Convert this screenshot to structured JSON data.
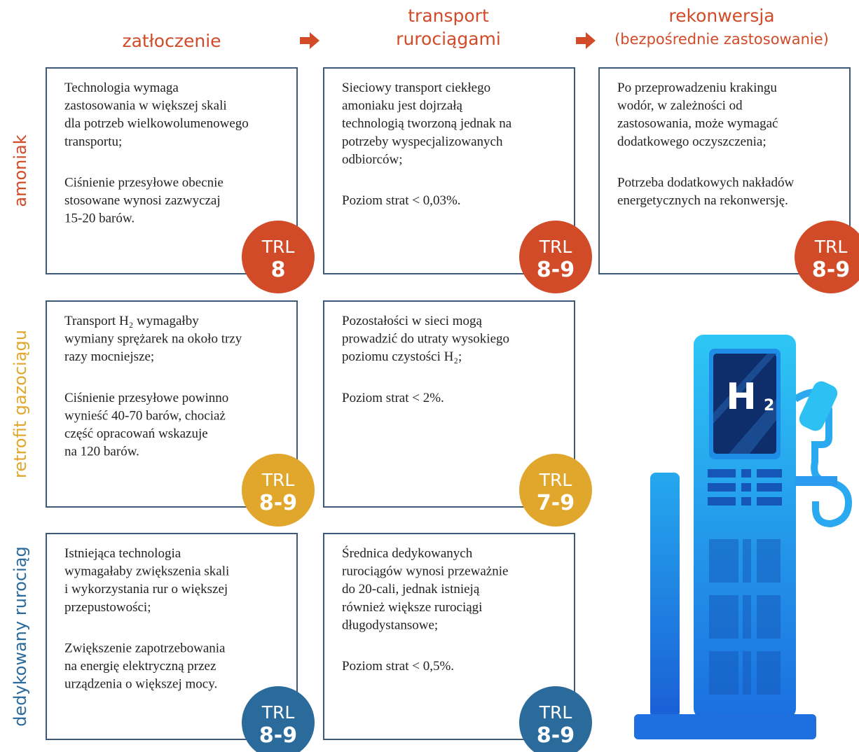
{
  "columns": [
    {
      "lines": [
        "zatłoczenie"
      ]
    },
    {
      "lines": [
        "transport",
        "rurociągami"
      ]
    },
    {
      "lines": [
        "rekonwersja",
        "(bezpośrednie zastosowanie)"
      ]
    }
  ],
  "rows": [
    {
      "label": "amoniak",
      "color": "#d24b28",
      "cells": [
        {
          "paragraphs": [
            [
              "Technologia wymaga",
              "zastosowania w większej skali",
              "dla potrzeb wielkowolumenowego",
              "transportu;"
            ],
            [
              "Ciśnienie przesyłowe obecnie",
              "stosowane wynosi zazwyczaj",
              "15-20 barów."
            ]
          ],
          "trl": {
            "label": "TRL",
            "level": "8"
          }
        },
        {
          "paragraphs": [
            [
              "Sieciowy transport ciekłego",
              "amoniaku jest dojrzałą",
              "technologią tworzoną jednak na",
              "potrzeby wyspecjalizowanych",
              "odbiorców;"
            ],
            [
              "Poziom strat < 0,03%."
            ]
          ],
          "trl": {
            "label": "TRL",
            "level": "8-9"
          }
        },
        {
          "paragraphs": [
            [
              "Po przeprowadzeniu krakingu",
              "wodór, w zależności od",
              "zastosowania, może wymagać",
              "dodatkowego oczyszczenia;"
            ],
            [
              "Potrzeba dodatkowych nakładów",
              "energetycznych na rekonwersję."
            ]
          ],
          "trl": {
            "label": "TRL",
            "level": "8-9"
          }
        }
      ]
    },
    {
      "label": "retrofit gazociągu",
      "color": "#e0a72c",
      "cells": [
        {
          "paragraphs": [
            [
              "Transport H₂ wymagałby",
              "wymiany sprężarek na około trzy",
              "razy mocniejsze;"
            ],
            [
              "Ciśnienie przesyłowe powinno",
              "wynieść 40-70 barów, chociaż",
              "część opracowań wskazuje",
              "na 120 barów."
            ]
          ],
          "trl": {
            "label": "TRL",
            "level": "8-9"
          }
        },
        {
          "paragraphs": [
            [
              "Pozostałości w sieci mogą",
              "prowadzić do utraty wysokiego",
              "poziomu czystości H₂;"
            ],
            [
              "Poziom strat < 2%."
            ]
          ],
          "trl": {
            "label": "TRL",
            "level": "7-9"
          }
        }
      ]
    },
    {
      "label": "dedykowany rurociąg",
      "color": "#2b6b9c",
      "cells": [
        {
          "paragraphs": [
            [
              "Istniejąca technologia",
              "wymagałaby zwiększenia skali",
              "i wykorzystania rur o większej",
              "przepustowości;"
            ],
            [
              "Zwiększenie zapotrzebowania",
              "na energię elektryczną przez",
              "urządzenia o większej mocy."
            ]
          ],
          "trl": {
            "label": "TRL",
            "level": "8-9"
          }
        },
        {
          "paragraphs": [
            [
              "Średnica dedykowanych",
              "rurociągów wynosi przeważnie",
              "do 20-cali, jednak istnieją",
              "również większe rurociągi",
              "długodystansowe;"
            ],
            [
              "Poziom strat < 0,5%."
            ]
          ],
          "trl": {
            "label": "TRL",
            "level": "8-9"
          }
        }
      ]
    }
  ],
  "pump_label": {
    "main": "H",
    "sub": "2"
  }
}
